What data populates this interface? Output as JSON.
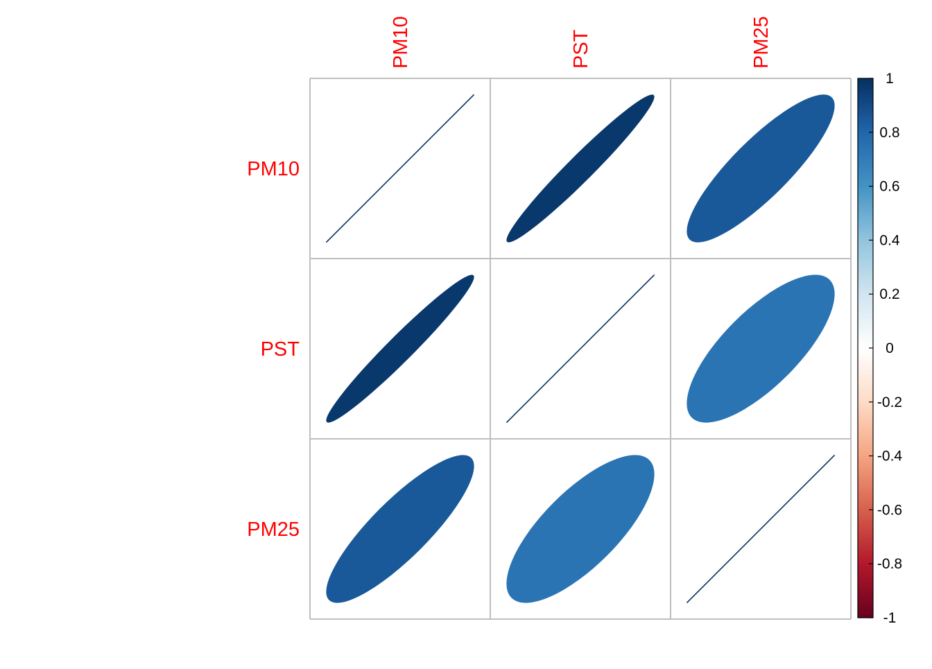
{
  "chart_data": {
    "type": "heatmap",
    "variables": [
      "PM10",
      "PST",
      "PM25"
    ],
    "matrix": [
      [
        1.0,
        0.97,
        0.85
      ],
      [
        0.97,
        1.0,
        0.74
      ],
      [
        0.85,
        0.74,
        1.0
      ]
    ],
    "legend": {
      "ticks": [
        "1",
        "0.8",
        "0.6",
        "0.4",
        "0.2",
        "0",
        "-0.2",
        "-0.4",
        "-0.6",
        "-0.8",
        "-1"
      ],
      "range": [
        -1,
        1
      ],
      "placement": "right"
    },
    "colors": {
      "label": "#ff0000",
      "grid": "#bebebe",
      "palette": [
        "#67001F",
        "#B2182B",
        "#D6604D",
        "#F4A582",
        "#FDDBC7",
        "#FFFFFF",
        "#D1E5F0",
        "#92C5DE",
        "#4393C3",
        "#2166AC",
        "#053061"
      ]
    }
  }
}
